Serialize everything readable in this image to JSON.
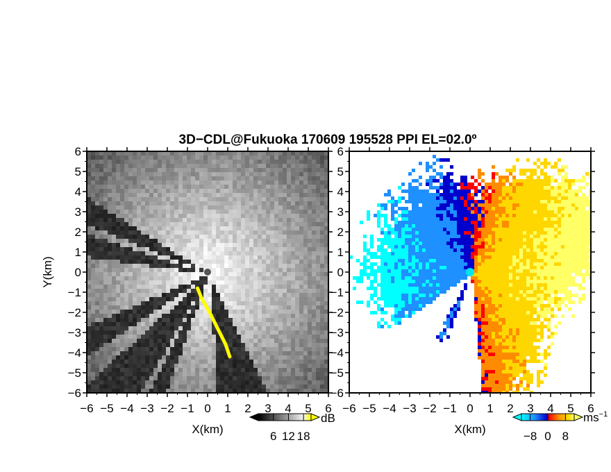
{
  "title": "3D−CDL@Fukuoka 170609 195528 PPI EL=02.0º",
  "chart_data": [
    {
      "type": "heatmap",
      "variable_unit": "dB",
      "xlabel": "X(km)",
      "ylabel": "Y(km)",
      "xlim": [
        -6,
        6
      ],
      "ylim": [
        -6,
        6
      ],
      "ticks": [
        -6,
        -5,
        -4,
        -3,
        -2,
        -1,
        0,
        1,
        2,
        3,
        4,
        5,
        6
      ],
      "tick_labels": [
        "−6",
        "−5",
        "−4",
        "−3",
        "−2",
        "−1",
        "0",
        "1",
        "2",
        "3",
        "4",
        "5",
        "6"
      ],
      "radar_origin": [
        0,
        0
      ],
      "colorbar": {
        "unit": "dB",
        "ticks": [
          6,
          12,
          18
        ],
        "tick_labels": [
          "6",
          "12",
          "18"
        ],
        "colors": [
          "#000000",
          "#ffffff",
          "#ffff00"
        ],
        "extend": "both"
      },
      "blocked_sectors_deg_from_east": [
        [
          148,
          158
        ],
        [
          162,
          172
        ],
        [
          203,
          214
        ],
        [
          222,
          240
        ],
        [
          243,
          250
        ],
        [
          274,
          296
        ]
      ],
      "highlight_color": "#ffff00"
    },
    {
      "type": "heatmap",
      "variable_unit": "ms⁻¹",
      "xlabel": "X(km)",
      "xlim": [
        -6,
        6
      ],
      "ylim": [
        -6,
        6
      ],
      "ticks": [
        -6,
        -5,
        -4,
        -3,
        -2,
        -1,
        0,
        1,
        2,
        3,
        4,
        5,
        6
      ],
      "tick_labels": [
        "−6",
        "−5",
        "−4",
        "−3",
        "−2",
        "−1",
        "0",
        "1",
        "2",
        "3",
        "4",
        "5",
        "6"
      ],
      "radar_origin": [
        0,
        0
      ],
      "colorbar": {
        "unit_base": "ms",
        "unit_exp": "−1",
        "ticks": [
          -8,
          0,
          8
        ],
        "tick_labels": [
          "−8",
          "0",
          "8"
        ],
        "range": [
          -12,
          12
        ],
        "colors": [
          "#00ffff",
          "#1e90ff",
          "#0000cd",
          "#ff0000",
          "#ff8c00",
          "#ffd700",
          "#ffff66"
        ],
        "extend": "both"
      },
      "velocity_pattern": "negative (toward radar) to the west, positive (away) to the east",
      "radar_marker_color": "#00e5ee"
    }
  ]
}
